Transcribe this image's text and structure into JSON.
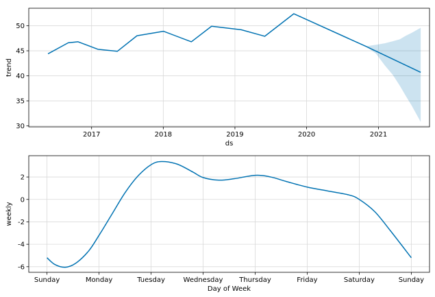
{
  "chart_data": [
    {
      "type": "line",
      "xlabel": "ds",
      "ylabel": "trend",
      "ylim": [
        29.8,
        53.5
      ],
      "xlim": [
        "2016-02-16",
        "2021-09-18"
      ],
      "grid": true,
      "x_ticks": [
        {
          "date": "2017-01-01",
          "label": "2017"
        },
        {
          "date": "2018-01-01",
          "label": "2018"
        },
        {
          "date": "2019-01-01",
          "label": "2019"
        },
        {
          "date": "2020-01-01",
          "label": "2020"
        },
        {
          "date": "2021-01-01",
          "label": "2021"
        }
      ],
      "y_ticks": [
        30,
        35,
        40,
        45,
        50
      ],
      "line_color": "#0072B2",
      "band_color": "#0072B2",
      "series": [
        {
          "x": [
            "2016-05-24",
            "2016-09-04",
            "2016-10-24",
            "2017-02-02",
            "2017-05-12",
            "2017-08-20",
            "2018-01-02",
            "2018-05-24",
            "2018-09-04",
            "2019-02-02",
            "2019-06-02",
            "2019-10-28",
            "2020-10-28",
            "2021-08-04"
          ],
          "y": [
            44.4,
            46.6,
            46.8,
            45.3,
            44.9,
            48.0,
            48.9,
            46.8,
            49.9,
            49.2,
            47.9,
            52.4,
            45.9,
            40.7
          ]
        }
      ],
      "uncertainty": {
        "x": [
          "2020-10-28",
          "2020-12-20",
          "2021-02-02",
          "2021-03-15",
          "2021-04-20",
          "2021-05-20",
          "2021-06-20",
          "2021-08-04"
        ],
        "upper": [
          45.9,
          46.2,
          46.5,
          46.9,
          47.3,
          48.0,
          48.6,
          49.6
        ],
        "lower": [
          45.9,
          44.4,
          42.1,
          40.2,
          38.0,
          36.0,
          34.0,
          30.8
        ]
      }
    },
    {
      "type": "line",
      "xlabel": "Day of Week",
      "ylabel": "weekly",
      "ylim": [
        -6.5,
        3.9
      ],
      "xlim": [
        -0.35,
        7.35
      ],
      "grid": true,
      "x_ticks": [
        {
          "pos": 0,
          "label": "Sunday"
        },
        {
          "pos": 1,
          "label": "Monday"
        },
        {
          "pos": 2,
          "label": "Tuesday"
        },
        {
          "pos": 3,
          "label": "Wednesday"
        },
        {
          "pos": 4,
          "label": "Thursday"
        },
        {
          "pos": 5,
          "label": "Friday"
        },
        {
          "pos": 6,
          "label": "Saturday"
        },
        {
          "pos": 7,
          "label": "Sunday"
        }
      ],
      "y_ticks": [
        -6,
        -4,
        -2,
        0,
        2
      ],
      "line_color": "#0072B2",
      "series": [
        {
          "x": [
            0,
            0.15,
            0.35,
            0.55,
            0.8,
            1.0,
            1.25,
            1.5,
            1.75,
            2.0,
            2.2,
            2.5,
            2.8,
            3.0,
            3.3,
            3.6,
            4.0,
            4.3,
            4.6,
            5.0,
            5.4,
            5.8,
            6.0,
            6.3,
            6.6,
            7.0
          ],
          "y": [
            -5.2,
            -5.8,
            -6.05,
            -5.7,
            -4.6,
            -3.2,
            -1.3,
            0.6,
            2.1,
            3.1,
            3.38,
            3.15,
            2.45,
            1.95,
            1.72,
            1.85,
            2.15,
            2.0,
            1.6,
            1.1,
            0.75,
            0.4,
            0.0,
            -1.1,
            -2.8,
            -5.2
          ]
        }
      ]
    }
  ]
}
